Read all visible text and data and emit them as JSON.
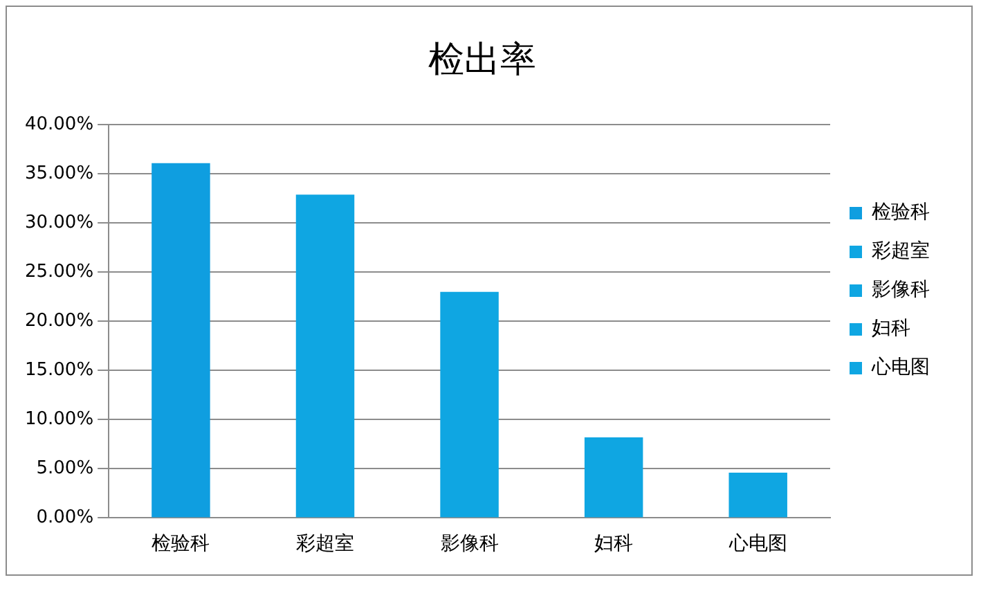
{
  "chart_data": {
    "type": "bar",
    "title": "检出率",
    "categories": [
      "检验科",
      "彩超室",
      "影像科",
      "妇科",
      "心电图"
    ],
    "series": [
      {
        "name": "检验科",
        "color": "#0f9ee0",
        "values": [
          36.1,
          null,
          null,
          null,
          null
        ]
      },
      {
        "name": "彩超室",
        "color": "#0fa6e2",
        "values": [
          null,
          32.9,
          null,
          null,
          null
        ]
      },
      {
        "name": "影像科",
        "color": "#0fa6e2",
        "values": [
          null,
          null,
          23.0,
          null,
          null
        ]
      },
      {
        "name": "妇科",
        "color": "#0fa6e2",
        "values": [
          null,
          null,
          null,
          8.2,
          null
        ]
      },
      {
        "name": "心电图",
        "color": "#0fa6e2",
        "values": [
          null,
          null,
          null,
          null,
          4.6
        ]
      }
    ],
    "ylim": [
      0,
      40
    ],
    "yticks": [
      {
        "value": 0,
        "label": "0.00%"
      },
      {
        "value": 5,
        "label": "5.00%"
      },
      {
        "value": 10,
        "label": "10.00%"
      },
      {
        "value": 15,
        "label": "15.00%"
      },
      {
        "value": 20,
        "label": "20.00%"
      },
      {
        "value": 25,
        "label": "25.00%"
      },
      {
        "value": 30,
        "label": "30.00%"
      },
      {
        "value": 35,
        "label": "35.00%"
      },
      {
        "value": 40,
        "label": "40.00%"
      }
    ],
    "grid": "y",
    "legend": "right"
  }
}
